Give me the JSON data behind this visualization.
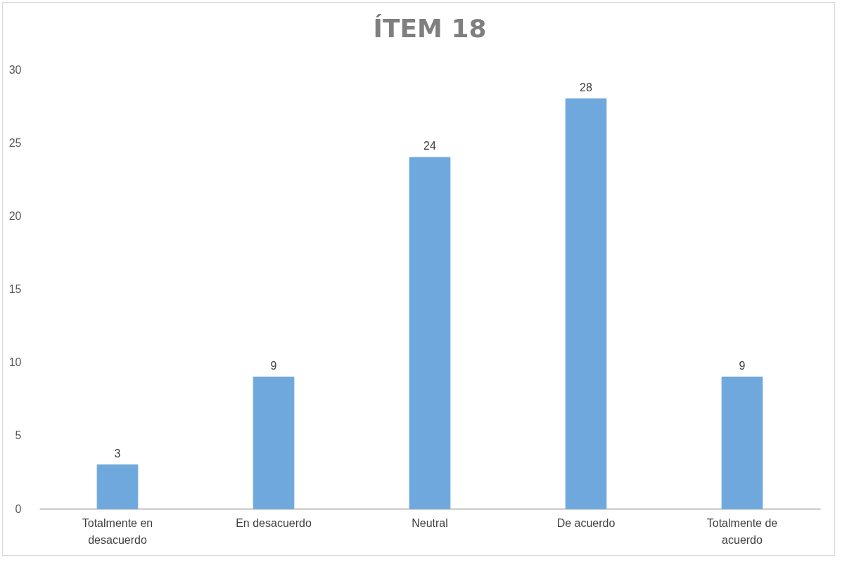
{
  "chart_data": {
    "type": "bar",
    "title": "ÍTEM 18",
    "categories": [
      "Totalmente en desacuerdo",
      "En desacuerdo",
      "Neutral",
      "De acuerdo",
      "Totalmente de acuerdo"
    ],
    "values": [
      3,
      9,
      24,
      28,
      9
    ],
    "color": "#6fa8dc",
    "ylim": [
      0,
      30
    ],
    "yticks": [
      0,
      5,
      10,
      15,
      20,
      25,
      30
    ],
    "grid": false,
    "data_labels": true
  }
}
